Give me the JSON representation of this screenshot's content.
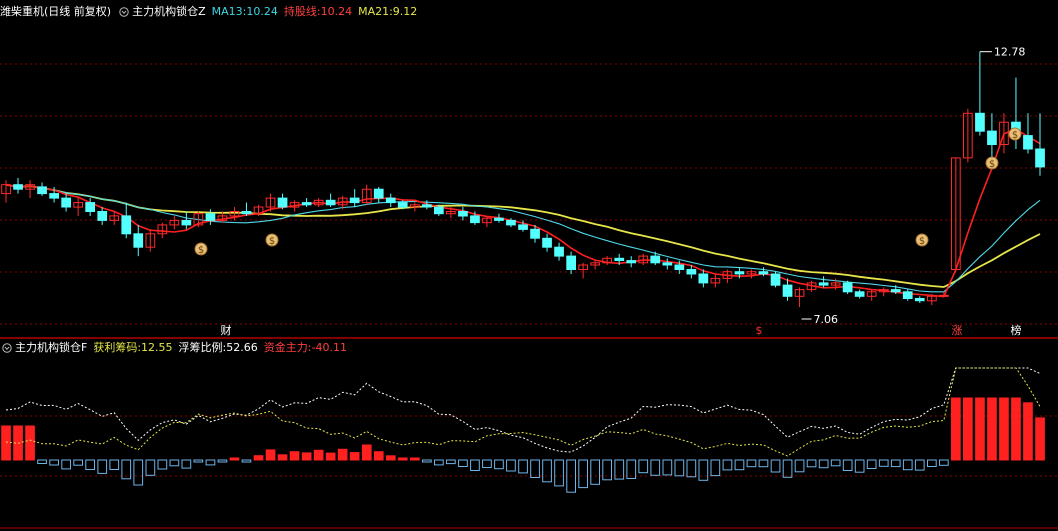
{
  "main_header": {
    "stock_title": "潍柴重机(日线 前复权)",
    "indicator_name": "主力机构锁仓Z",
    "items": [
      {
        "label": "MA13:",
        "value": "10.24",
        "color": "#3fd6e6"
      },
      {
        "label": "持股线:",
        "value": "10.24",
        "color": "#ff4040"
      },
      {
        "label": "MA21:",
        "value": "9.12",
        "color": "#e6e64a"
      }
    ]
  },
  "sub_header": {
    "indicator_name": "主力机构锁仓F",
    "items": [
      {
        "label": "获利筹码:",
        "value": "12.55",
        "color": "#e6e64a"
      },
      {
        "label": "浮筹比例:",
        "value": "52.66",
        "color": "#ffffff"
      },
      {
        "label": "资金主力:",
        "value": "-40.11",
        "color": "#ff4040"
      }
    ]
  },
  "annotations": {
    "high_price": "12.78",
    "low_price": "7.06",
    "marker_cai": "财",
    "marker_dollar": "$",
    "marker_zhang": "涨",
    "marker_bang": "榜"
  },
  "colors": {
    "up": "#ff2a2a",
    "down": "#54ffff",
    "ma13": "#4fd9e8",
    "ma21": "#e6e64a",
    "hold_line": "#ff2020",
    "grid": "#8a0000",
    "divider": "#b00000",
    "bar_up": "#ff2020",
    "bar_down": "#6fb4e8",
    "float_line": "#ffffff",
    "profit_line": "#e6e64a"
  },
  "chart_data": {
    "type": "candlestick",
    "candles_ohlc": [
      [
        9.6,
        9.9,
        9.4,
        9.8
      ],
      [
        9.8,
        9.95,
        9.6,
        9.7
      ],
      [
        9.7,
        9.9,
        9.5,
        9.8
      ],
      [
        9.75,
        9.85,
        9.55,
        9.6
      ],
      [
        9.6,
        9.75,
        9.4,
        9.5
      ],
      [
        9.5,
        9.6,
        9.2,
        9.3
      ],
      [
        9.3,
        9.5,
        9.1,
        9.4
      ],
      [
        9.4,
        9.5,
        9.1,
        9.2
      ],
      [
        9.2,
        9.3,
        8.9,
        9.0
      ],
      [
        9.0,
        9.2,
        8.9,
        9.1
      ],
      [
        9.1,
        9.4,
        8.6,
        8.7
      ],
      [
        8.7,
        8.9,
        8.2,
        8.4
      ],
      [
        8.4,
        8.8,
        8.3,
        8.7
      ],
      [
        8.7,
        8.95,
        8.6,
        8.9
      ],
      [
        8.9,
        9.1,
        8.8,
        9.0
      ],
      [
        9.0,
        9.2,
        8.8,
        8.9
      ],
      [
        8.9,
        9.2,
        8.85,
        9.15
      ],
      [
        9.15,
        9.25,
        8.9,
        9.0
      ],
      [
        9.0,
        9.2,
        8.95,
        9.1
      ],
      [
        9.1,
        9.3,
        9.0,
        9.2
      ],
      [
        9.2,
        9.4,
        9.1,
        9.15
      ],
      [
        9.15,
        9.35,
        9.1,
        9.3
      ],
      [
        9.3,
        9.6,
        9.2,
        9.5
      ],
      [
        9.5,
        9.6,
        9.25,
        9.3
      ],
      [
        9.3,
        9.45,
        9.2,
        9.4
      ],
      [
        9.4,
        9.5,
        9.3,
        9.35
      ],
      [
        9.35,
        9.5,
        9.3,
        9.45
      ],
      [
        9.45,
        9.6,
        9.3,
        9.35
      ],
      [
        9.35,
        9.55,
        9.25,
        9.5
      ],
      [
        9.5,
        9.7,
        9.3,
        9.4
      ],
      [
        9.4,
        9.8,
        9.35,
        9.7
      ],
      [
        9.7,
        9.75,
        9.4,
        9.5
      ],
      [
        9.5,
        9.6,
        9.3,
        9.4
      ],
      [
        9.4,
        9.45,
        9.25,
        9.3
      ],
      [
        9.3,
        9.4,
        9.2,
        9.35
      ],
      [
        9.35,
        9.45,
        9.25,
        9.3
      ],
      [
        9.3,
        9.35,
        9.1,
        9.15
      ],
      [
        9.15,
        9.3,
        9.05,
        9.2
      ],
      [
        9.2,
        9.3,
        9.0,
        9.1
      ],
      [
        9.1,
        9.2,
        8.9,
        8.95
      ],
      [
        8.95,
        9.1,
        8.85,
        9.05
      ],
      [
        9.05,
        9.15,
        8.95,
        9.0
      ],
      [
        9.0,
        9.05,
        8.85,
        8.9
      ],
      [
        8.9,
        9.0,
        8.75,
        8.8
      ],
      [
        8.8,
        8.9,
        8.5,
        8.6
      ],
      [
        8.6,
        8.7,
        8.3,
        8.4
      ],
      [
        8.4,
        8.5,
        8.1,
        8.2
      ],
      [
        8.2,
        8.3,
        7.8,
        7.9
      ],
      [
        7.9,
        8.05,
        7.7,
        8.0
      ],
      [
        8.0,
        8.1,
        7.9,
        8.05
      ],
      [
        8.05,
        8.2,
        8.0,
        8.15
      ],
      [
        8.15,
        8.25,
        8.0,
        8.1
      ],
      [
        8.1,
        8.2,
        7.95,
        8.05
      ],
      [
        8.05,
        8.25,
        8.0,
        8.2
      ],
      [
        8.2,
        8.3,
        8.0,
        8.05
      ],
      [
        8.05,
        8.15,
        7.9,
        8.0
      ],
      [
        8.0,
        8.1,
        7.8,
        7.9
      ],
      [
        7.9,
        8.0,
        7.7,
        7.8
      ],
      [
        7.8,
        7.9,
        7.5,
        7.6
      ],
      [
        7.6,
        7.8,
        7.5,
        7.7
      ],
      [
        7.7,
        7.9,
        7.6,
        7.85
      ],
      [
        7.85,
        7.95,
        7.7,
        7.8
      ],
      [
        7.8,
        7.9,
        7.7,
        7.85
      ],
      [
        7.85,
        7.95,
        7.75,
        7.8
      ],
      [
        7.8,
        7.85,
        7.5,
        7.55
      ],
      [
        7.55,
        7.7,
        7.2,
        7.3
      ],
      [
        7.3,
        7.5,
        7.06,
        7.45
      ],
      [
        7.45,
        7.65,
        7.4,
        7.6
      ],
      [
        7.6,
        7.75,
        7.5,
        7.55
      ],
      [
        7.55,
        7.7,
        7.45,
        7.6
      ],
      [
        7.6,
        7.65,
        7.35,
        7.4
      ],
      [
        7.4,
        7.45,
        7.25,
        7.3
      ],
      [
        7.3,
        7.45,
        7.2,
        7.4
      ],
      [
        7.4,
        7.5,
        7.3,
        7.45
      ],
      [
        7.45,
        7.55,
        7.35,
        7.4
      ],
      [
        7.4,
        7.45,
        7.2,
        7.25
      ],
      [
        7.25,
        7.3,
        7.15,
        7.2
      ],
      [
        7.2,
        7.35,
        7.1,
        7.3
      ],
      [
        7.3,
        7.4,
        7.28,
        7.32
      ],
      [
        7.9,
        10.4,
        7.9,
        10.4
      ],
      [
        10.4,
        11.5,
        10.3,
        11.4
      ],
      [
        11.4,
        12.78,
        10.9,
        11.0
      ],
      [
        11.0,
        11.4,
        10.4,
        10.7
      ],
      [
        10.7,
        11.4,
        10.5,
        11.2
      ],
      [
        11.2,
        12.2,
        10.6,
        10.9
      ],
      [
        10.9,
        11.4,
        10.5,
        10.6
      ],
      [
        10.6,
        11.4,
        10.0,
        10.2
      ]
    ]
  }
}
